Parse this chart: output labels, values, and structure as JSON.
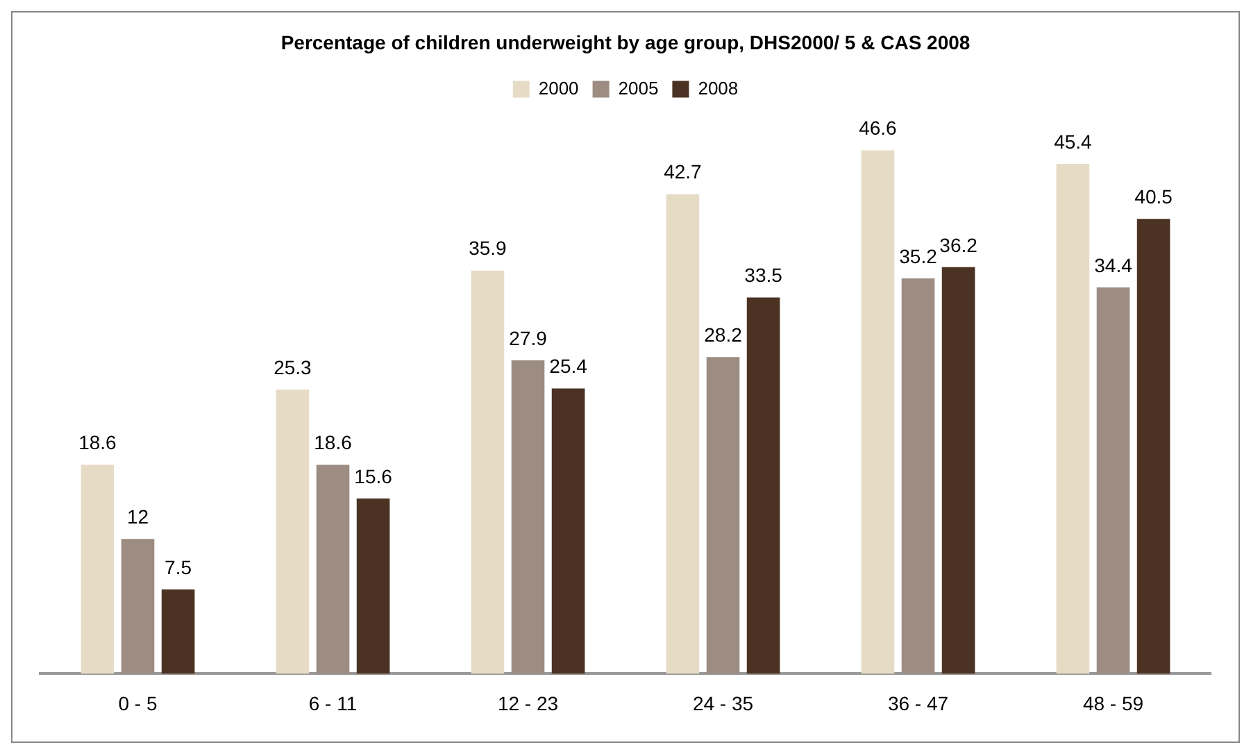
{
  "chart_data": {
    "type": "bar",
    "title": "Percentage of children underweight by age group, DHS2000/ 5 & CAS 2008",
    "categories": [
      "0 - 5",
      "6 - 11",
      "12 - 23",
      "24 - 35",
      "36 - 47",
      "48 - 59"
    ],
    "series": [
      {
        "name": "2000",
        "color": "#e6dcc6",
        "values": [
          18.6,
          25.3,
          35.9,
          42.7,
          46.6,
          45.4
        ]
      },
      {
        "name": "2005",
        "color": "#9c8c82",
        "values": [
          12,
          18.6,
          27.9,
          28.2,
          35.2,
          34.4
        ]
      },
      {
        "name": "2008",
        "color": "#4b3222",
        "values": [
          7.5,
          15.6,
          25.4,
          33.5,
          36.2,
          40.5
        ]
      }
    ],
    "data_labels": true,
    "legend": "top",
    "tick_labels": "x",
    "grid": false
  }
}
